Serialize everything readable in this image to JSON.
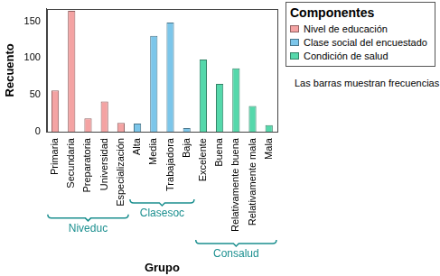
{
  "chart_data": {
    "type": "bar",
    "x_label": "Grupo",
    "y_label": "Recuento",
    "legend_title": "Componentes",
    "annotations": [
      "Las barras muestran frecuencias"
    ],
    "categories": [
      "Primaria",
      "Secundaria",
      "Preparatoria",
      "Universidad",
      "Especialización",
      "Alta",
      "Media",
      "Trabajadora",
      "Baja",
      "Excelente",
      "Buena",
      "Relativamente buena",
      "Relativamente mala",
      "Mala"
    ],
    "series": [
      {
        "name": "Nivel de educación",
        "color": "#f4a3a3",
        "values": [
          56,
          164,
          18,
          41,
          12,
          null,
          null,
          null,
          null,
          null,
          null,
          null,
          null,
          null
        ]
      },
      {
        "name": "Clase social del encuestado",
        "color": "#7cc6ea",
        "values": [
          null,
          null,
          null,
          null,
          null,
          11,
          130,
          148,
          5,
          null,
          null,
          null,
          null,
          null
        ]
      },
      {
        "name": "Condición de salud",
        "color": "#55d8ab",
        "values": [
          null,
          null,
          null,
          null,
          null,
          null,
          null,
          null,
          null,
          98,
          65,
          86,
          35,
          9
        ]
      }
    ],
    "groups": [
      {
        "name": "Niveduc",
        "categories": [
          "Primaria",
          "Secundaria",
          "Preparatoria",
          "Universidad",
          "Especialización"
        ]
      },
      {
        "name": "Clasesoc",
        "categories": [
          "Alta",
          "Media",
          "Trabajadora",
          "Baja"
        ]
      },
      {
        "name": "Consalud",
        "categories": [
          "Excelente",
          "Buena",
          "Relativamente buena",
          "Relativamente mala",
          "Mala"
        ]
      }
    ],
    "ylim": [
      0,
      167
    ],
    "yticks": [
      0,
      50,
      100,
      150
    ],
    "grid": false,
    "legend": "right"
  }
}
